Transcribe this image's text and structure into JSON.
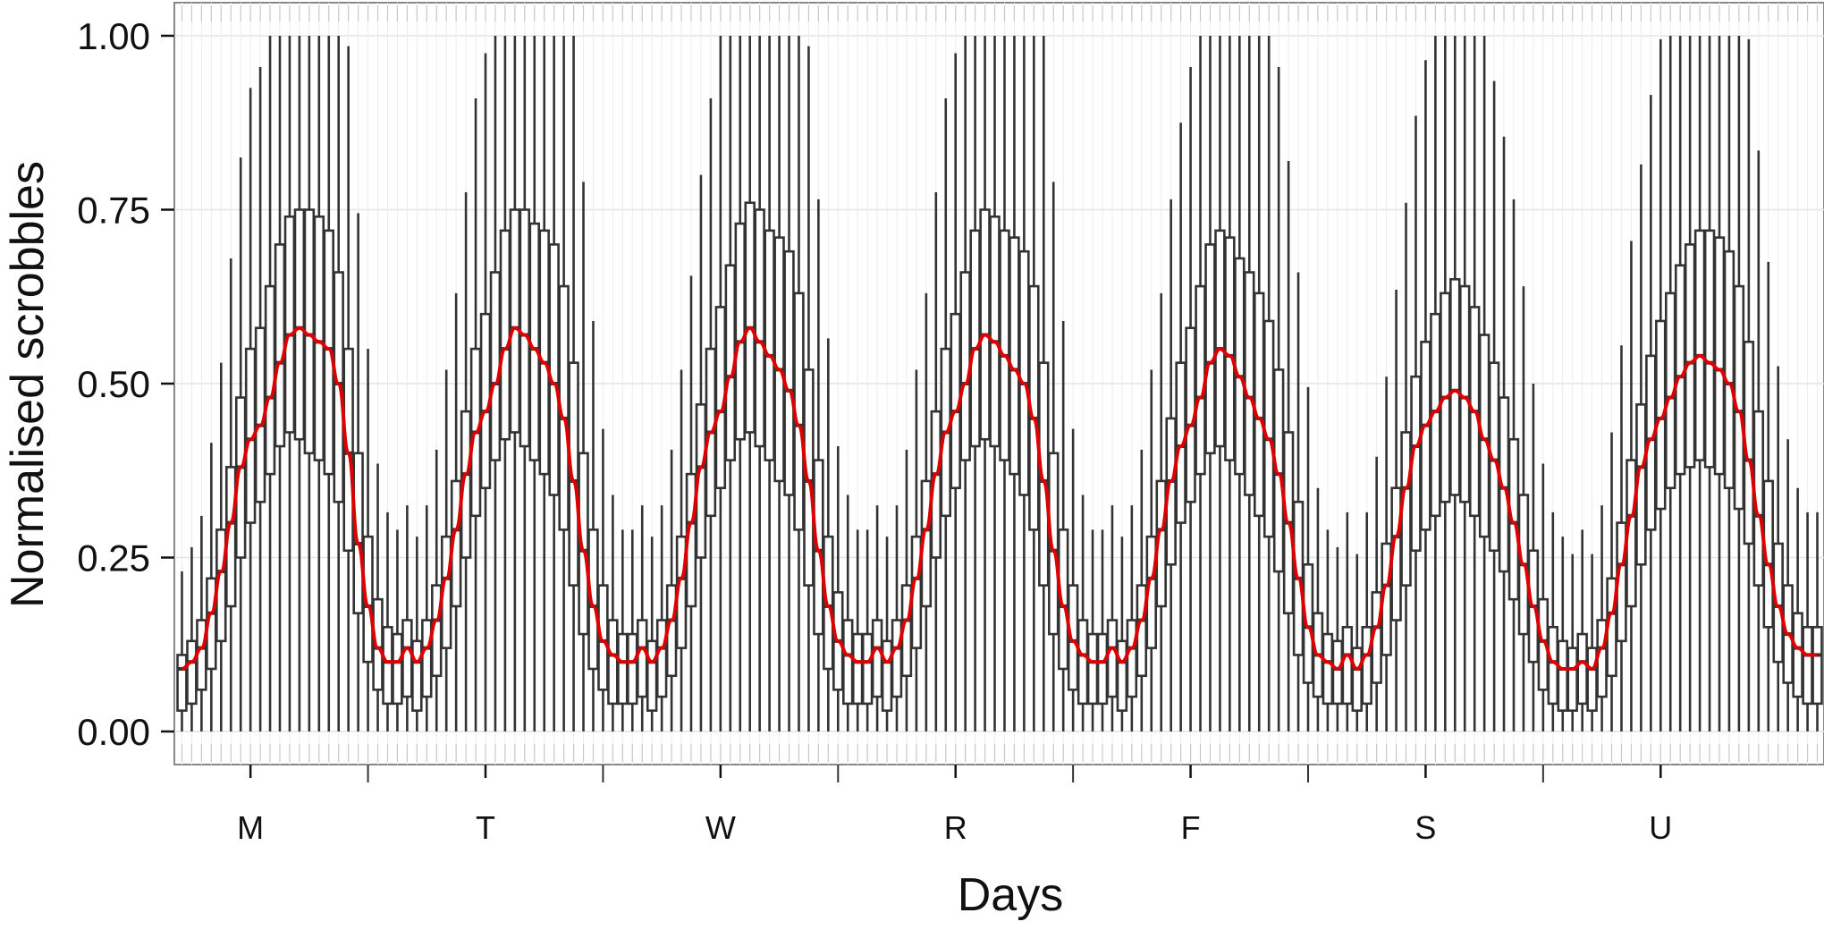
{
  "chart_data": {
    "type": "boxplot",
    "title": "",
    "xlabel": "Days",
    "ylabel": "Normalised scrobbles",
    "ylim": [
      0,
      1
    ],
    "y_ticks": [
      "0.00",
      "0.25",
      "0.50",
      "0.75",
      "1.00"
    ],
    "categories": [
      "M",
      "T",
      "W",
      "R",
      "F",
      "S",
      "U"
    ],
    "hours_per_day": 24,
    "box_color": "#333333",
    "line_color": "#dd0000",
    "grid": true,
    "day_profiles": [
      {
        "day": "M",
        "median": [
          0.09,
          0.1,
          0.12,
          0.17,
          0.23,
          0.3,
          0.38,
          0.42,
          0.44,
          0.48,
          0.53,
          0.57,
          0.58,
          0.57,
          0.56,
          0.55,
          0.5,
          0.4,
          0.27,
          0.18,
          0.12,
          0.1,
          0.1,
          0.12
        ],
        "q3": [
          0.11,
          0.13,
          0.16,
          0.22,
          0.29,
          0.38,
          0.48,
          0.55,
          0.58,
          0.64,
          0.7,
          0.74,
          0.75,
          0.75,
          0.74,
          0.72,
          0.66,
          0.55,
          0.4,
          0.28,
          0.19,
          0.15,
          0.14,
          0.16
        ],
        "q1": [
          0.03,
          0.04,
          0.06,
          0.09,
          0.13,
          0.18,
          0.25,
          0.3,
          0.33,
          0.37,
          0.41,
          0.43,
          0.42,
          0.4,
          0.39,
          0.37,
          0.33,
          0.26,
          0.17,
          0.1,
          0.06,
          0.04,
          0.04,
          0.05
        ]
      },
      {
        "day": "T",
        "median": [
          0.1,
          0.12,
          0.16,
          0.22,
          0.29,
          0.37,
          0.43,
          0.46,
          0.5,
          0.55,
          0.58,
          0.57,
          0.55,
          0.53,
          0.5,
          0.45,
          0.36,
          0.26,
          0.18,
          0.13,
          0.11,
          0.1,
          0.1,
          0.12
        ],
        "q3": [
          0.13,
          0.16,
          0.21,
          0.28,
          0.36,
          0.46,
          0.55,
          0.6,
          0.66,
          0.72,
          0.75,
          0.75,
          0.73,
          0.72,
          0.7,
          0.64,
          0.53,
          0.4,
          0.29,
          0.21,
          0.16,
          0.14,
          0.14,
          0.16
        ],
        "q1": [
          0.03,
          0.05,
          0.08,
          0.12,
          0.18,
          0.25,
          0.31,
          0.35,
          0.39,
          0.42,
          0.43,
          0.41,
          0.39,
          0.37,
          0.34,
          0.29,
          0.21,
          0.14,
          0.09,
          0.06,
          0.04,
          0.04,
          0.04,
          0.05
        ]
      },
      {
        "day": "W",
        "median": [
          0.1,
          0.12,
          0.16,
          0.22,
          0.3,
          0.38,
          0.43,
          0.46,
          0.51,
          0.56,
          0.58,
          0.56,
          0.54,
          0.52,
          0.49,
          0.44,
          0.36,
          0.26,
          0.18,
          0.13,
          0.11,
          0.1,
          0.1,
          0.12
        ],
        "q3": [
          0.13,
          0.16,
          0.21,
          0.28,
          0.37,
          0.47,
          0.55,
          0.61,
          0.67,
          0.73,
          0.76,
          0.75,
          0.72,
          0.71,
          0.69,
          0.63,
          0.52,
          0.39,
          0.28,
          0.2,
          0.16,
          0.14,
          0.14,
          0.16
        ],
        "q1": [
          0.03,
          0.05,
          0.08,
          0.12,
          0.18,
          0.25,
          0.31,
          0.35,
          0.39,
          0.42,
          0.43,
          0.41,
          0.39,
          0.36,
          0.34,
          0.29,
          0.21,
          0.14,
          0.09,
          0.06,
          0.04,
          0.04,
          0.04,
          0.05
        ]
      },
      {
        "day": "R",
        "median": [
          0.1,
          0.12,
          0.16,
          0.22,
          0.29,
          0.37,
          0.43,
          0.46,
          0.5,
          0.55,
          0.57,
          0.56,
          0.54,
          0.52,
          0.5,
          0.45,
          0.36,
          0.26,
          0.18,
          0.13,
          0.11,
          0.1,
          0.1,
          0.12
        ],
        "q3": [
          0.13,
          0.16,
          0.21,
          0.28,
          0.36,
          0.46,
          0.55,
          0.6,
          0.66,
          0.72,
          0.75,
          0.74,
          0.72,
          0.71,
          0.69,
          0.64,
          0.53,
          0.4,
          0.29,
          0.21,
          0.16,
          0.14,
          0.14,
          0.16
        ],
        "q1": [
          0.03,
          0.05,
          0.08,
          0.12,
          0.18,
          0.25,
          0.31,
          0.35,
          0.39,
          0.41,
          0.42,
          0.41,
          0.39,
          0.37,
          0.34,
          0.29,
          0.21,
          0.14,
          0.09,
          0.06,
          0.04,
          0.04,
          0.04,
          0.05
        ]
      },
      {
        "day": "F",
        "median": [
          0.1,
          0.12,
          0.16,
          0.22,
          0.29,
          0.36,
          0.41,
          0.44,
          0.48,
          0.53,
          0.55,
          0.54,
          0.51,
          0.48,
          0.45,
          0.42,
          0.37,
          0.3,
          0.22,
          0.15,
          0.11,
          0.1,
          0.09,
          0.11
        ],
        "q3": [
          0.13,
          0.16,
          0.21,
          0.28,
          0.36,
          0.45,
          0.53,
          0.58,
          0.64,
          0.7,
          0.72,
          0.71,
          0.68,
          0.66,
          0.63,
          0.59,
          0.52,
          0.43,
          0.33,
          0.24,
          0.17,
          0.14,
          0.13,
          0.15
        ],
        "q1": [
          0.03,
          0.05,
          0.08,
          0.12,
          0.18,
          0.24,
          0.3,
          0.33,
          0.37,
          0.4,
          0.41,
          0.39,
          0.37,
          0.34,
          0.31,
          0.28,
          0.23,
          0.17,
          0.11,
          0.07,
          0.05,
          0.04,
          0.04,
          0.04
        ]
      },
      {
        "day": "S",
        "median": [
          0.09,
          0.11,
          0.15,
          0.21,
          0.28,
          0.35,
          0.41,
          0.44,
          0.46,
          0.48,
          0.49,
          0.48,
          0.46,
          0.42,
          0.39,
          0.35,
          0.3,
          0.24,
          0.18,
          0.13,
          0.1,
          0.09,
          0.09,
          0.1
        ],
        "q3": [
          0.12,
          0.15,
          0.2,
          0.27,
          0.35,
          0.43,
          0.51,
          0.56,
          0.6,
          0.63,
          0.65,
          0.64,
          0.61,
          0.57,
          0.53,
          0.48,
          0.42,
          0.34,
          0.26,
          0.19,
          0.15,
          0.13,
          0.12,
          0.14
        ],
        "q1": [
          0.03,
          0.04,
          0.07,
          0.11,
          0.16,
          0.21,
          0.26,
          0.29,
          0.31,
          0.33,
          0.34,
          0.33,
          0.31,
          0.28,
          0.26,
          0.23,
          0.19,
          0.14,
          0.1,
          0.06,
          0.04,
          0.03,
          0.03,
          0.04
        ]
      },
      {
        "day": "U",
        "median": [
          0.09,
          0.12,
          0.17,
          0.24,
          0.31,
          0.38,
          0.42,
          0.45,
          0.48,
          0.51,
          0.53,
          0.54,
          0.53,
          0.52,
          0.5,
          0.46,
          0.39,
          0.31,
          0.24,
          0.18,
          0.14,
          0.12,
          0.11,
          0.11
        ],
        "q3": [
          0.12,
          0.16,
          0.22,
          0.3,
          0.39,
          0.47,
          0.54,
          0.59,
          0.63,
          0.67,
          0.7,
          0.72,
          0.72,
          0.71,
          0.69,
          0.64,
          0.56,
          0.46,
          0.36,
          0.27,
          0.21,
          0.17,
          0.15,
          0.15
        ],
        "q1": [
          0.03,
          0.05,
          0.08,
          0.13,
          0.18,
          0.24,
          0.29,
          0.32,
          0.35,
          0.37,
          0.38,
          0.39,
          0.38,
          0.37,
          0.35,
          0.32,
          0.27,
          0.21,
          0.15,
          0.1,
          0.07,
          0.05,
          0.04,
          0.04
        ]
      }
    ]
  }
}
